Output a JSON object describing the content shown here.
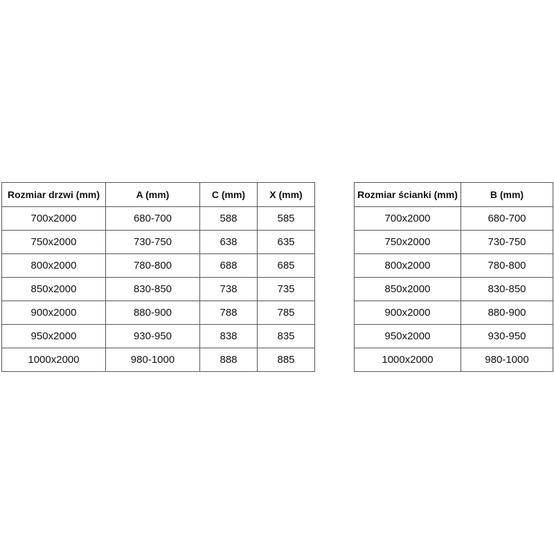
{
  "door_table": {
    "headers": [
      "Rozmiar drzwi (mm)",
      "A (mm)",
      "C (mm)",
      "X (mm)"
    ],
    "rows": [
      [
        "700x2000",
        "680-700",
        "588",
        "585"
      ],
      [
        "750x2000",
        "730-750",
        "638",
        "635"
      ],
      [
        "800x2000",
        "780-800",
        "688",
        "685"
      ],
      [
        "850x2000",
        "830-850",
        "738",
        "735"
      ],
      [
        "900x2000",
        "880-900",
        "788",
        "785"
      ],
      [
        "950x2000",
        "930-950",
        "838",
        "835"
      ],
      [
        "1000x2000",
        "980-1000",
        "888",
        "885"
      ]
    ]
  },
  "wall_table": {
    "headers": [
      "Rozmiar ścianki (mm)",
      "B (mm)"
    ],
    "rows": [
      [
        "700x2000",
        "680-700"
      ],
      [
        "750x2000",
        "730-750"
      ],
      [
        "800x2000",
        "780-800"
      ],
      [
        "850x2000",
        "830-850"
      ],
      [
        "900x2000",
        "880-900"
      ],
      [
        "950x2000",
        "930-950"
      ],
      [
        "1000x2000",
        "980-1000"
      ]
    ]
  }
}
